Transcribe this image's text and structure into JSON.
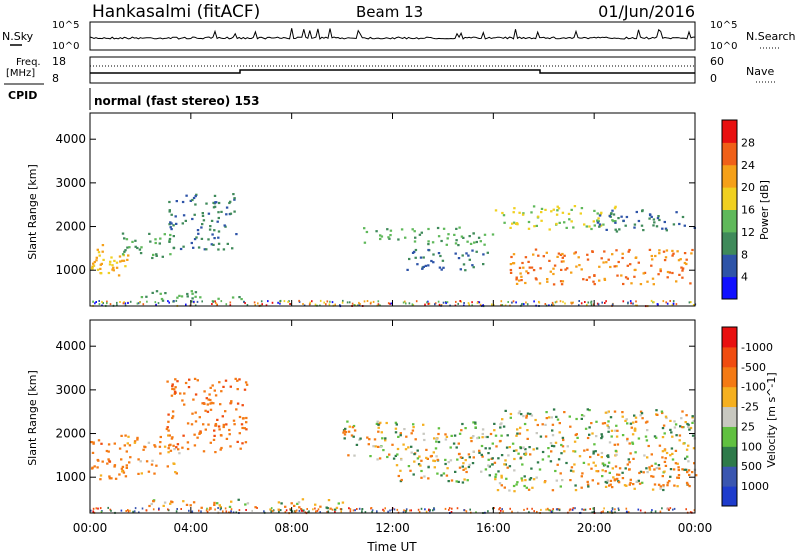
{
  "header": {
    "station": "Hankasalmi (fitACF)",
    "beam": "Beam 13",
    "date": "01/Jun/2016"
  },
  "noise_panel": {
    "left_label": "N.Sky",
    "right_label": "N.Search",
    "left_ticks": [
      "10^5",
      "10^0"
    ],
    "right_ticks": [
      "10^5",
      "10^0"
    ]
  },
  "freq_panel": {
    "left_label": "Freq.",
    "left_unit": "[MHz]",
    "right_label": "Nave",
    "left_ticks": [
      "18",
      "8"
    ],
    "right_ticks": [
      "60",
      "0"
    ]
  },
  "cpid": {
    "label": "CPID",
    "text": "normal (fast stereo) 153"
  },
  "time_axis": {
    "ticks": [
      "00:00",
      "04:00",
      "08:00",
      "12:00",
      "16:00",
      "20:00",
      "00:00"
    ],
    "label": "Time UT"
  },
  "range_axis": {
    "label": "Slant Range [km]",
    "ticks": [
      "1000",
      "2000",
      "3000",
      "4000"
    ]
  },
  "colors": {
    "power_scale": [
      "#1010ff",
      "#2e54a8",
      "#3f8a5a",
      "#5fb85a",
      "#f0d020",
      "#f5a018",
      "#f06018",
      "#e81010"
    ],
    "velocity_scale": [
      "#e81010",
      "#f04c10",
      "#f47a14",
      "#f5b020",
      "#c8c8c0",
      "#60c040",
      "#2e7a4a",
      "#3a56b0",
      "#1e3ccc"
    ]
  },
  "chart_data": [
    {
      "type": "heatmap",
      "title": "Power",
      "xlabel": "Time UT",
      "ylabel": "Slant Range [km]",
      "xlim": [
        0,
        24
      ],
      "ylim": [
        180,
        4600
      ],
      "colorbar": {
        "label": "Power [dB]",
        "ticks": [
          "4",
          "8",
          "12",
          "16",
          "20",
          "24",
          "28"
        ],
        "range": [
          0,
          32
        ]
      },
      "regions": [
        {
          "t0": 0.0,
          "t1": 0.5,
          "r0": 950,
          "r1": 1600,
          "value": 20
        },
        {
          "t0": 0.7,
          "t1": 1.5,
          "r0": 900,
          "r1": 1400,
          "value": 20
        },
        {
          "t0": 1.2,
          "t1": 3.2,
          "r0": 1300,
          "r1": 1900,
          "value": 12
        },
        {
          "t0": 3.0,
          "t1": 5.8,
          "r0": 1500,
          "r1": 2800,
          "value": 8
        },
        {
          "t0": 2.0,
          "t1": 6.0,
          "r0": 300,
          "r1": 550,
          "value": 12
        },
        {
          "t0": 10.8,
          "t1": 16.0,
          "r0": 1600,
          "r1": 2000,
          "value": 12
        },
        {
          "t0": 12.5,
          "t1": 15.8,
          "r0": 1000,
          "r1": 1500,
          "value": 8
        },
        {
          "t0": 16.0,
          "t1": 21.0,
          "r0": 1950,
          "r1": 2500,
          "value": 16
        },
        {
          "t0": 16.5,
          "t1": 24.0,
          "r0": 700,
          "r1": 1500,
          "value": 24
        },
        {
          "t0": 20.0,
          "t1": 24.0,
          "r0": 1900,
          "r1": 2400,
          "value": 8
        }
      ]
    },
    {
      "type": "heatmap",
      "title": "Velocity",
      "xlabel": "Time UT",
      "ylabel": "Slant Range [km]",
      "xlim": [
        0,
        24
      ],
      "ylim": [
        180,
        4600
      ],
      "colorbar": {
        "label": "Velocity [m s^-1]",
        "ticks": [
          "1000",
          "500",
          "100",
          "25",
          "-25",
          "-100",
          "-500",
          "-1000"
        ],
        "range": [
          -1200,
          1200
        ]
      },
      "regions": [
        {
          "t0": 0.0,
          "t1": 1.5,
          "r0": 950,
          "r1": 1900,
          "value": -300
        },
        {
          "t0": 1.2,
          "t1": 3.5,
          "r0": 1100,
          "r1": 2000,
          "value": -200
        },
        {
          "t0": 3.0,
          "t1": 6.2,
          "r0": 1600,
          "r1": 3300,
          "value": -400
        },
        {
          "t0": 2.0,
          "t1": 5.0,
          "r0": 300,
          "r1": 500,
          "value": -120
        },
        {
          "t0": 5.0,
          "t1": 10.0,
          "r0": 280,
          "r1": 520,
          "value": 0
        },
        {
          "t0": 10.0,
          "t1": 16.0,
          "r0": 1400,
          "r1": 2300,
          "value": 0
        },
        {
          "t0": 12.0,
          "t1": 16.5,
          "r0": 900,
          "r1": 1600,
          "value": 0
        },
        {
          "t0": 16.0,
          "t1": 24.0,
          "r0": 700,
          "r1": 2600,
          "value": 0
        },
        {
          "t0": 20.0,
          "t1": 24.0,
          "r0": 800,
          "r1": 1300,
          "value": -250
        }
      ]
    }
  ]
}
